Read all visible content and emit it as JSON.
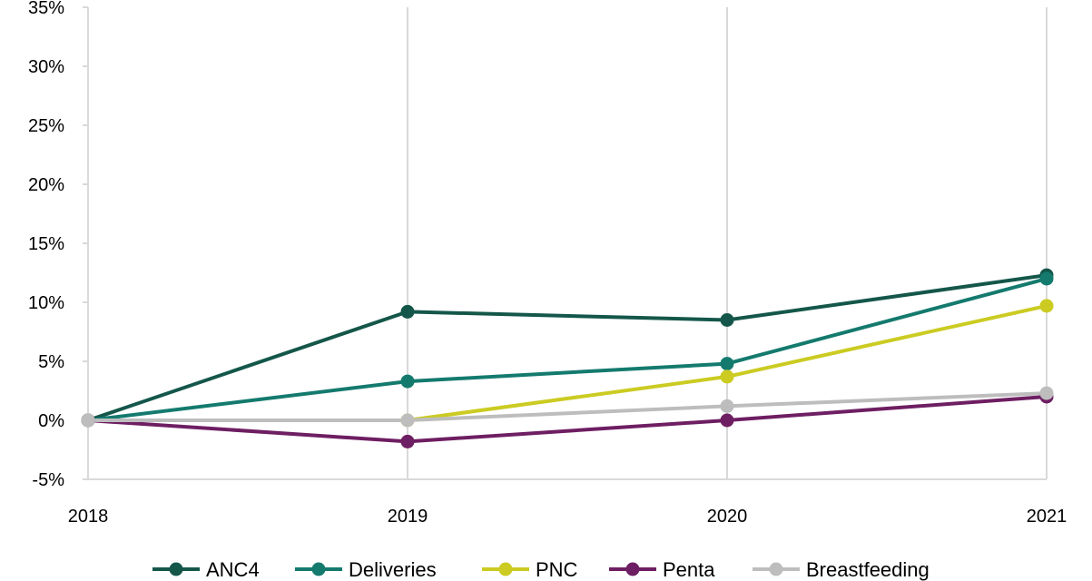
{
  "chart_data": {
    "type": "line",
    "title": "",
    "xlabel": "",
    "ylabel": "",
    "x": [
      "2018",
      "2019",
      "2020",
      "2021"
    ],
    "ylim": [
      -5,
      35
    ],
    "yticks": [
      -5,
      0,
      5,
      10,
      15,
      20,
      25,
      30,
      35
    ],
    "ytick_labels": [
      "-5%",
      "0%",
      "5%",
      "10%",
      "15%",
      "20%",
      "25%",
      "30%",
      "35%"
    ],
    "grid": "vertical",
    "legend_position": "bottom",
    "series": [
      {
        "name": "ANC4",
        "color": "#14574A",
        "values": [
          0,
          9.2,
          8.5,
          12.3
        ]
      },
      {
        "name": "Deliveries",
        "color": "#147A6E",
        "values": [
          0,
          3.3,
          4.8,
          12.0
        ]
      },
      {
        "name": "PNC",
        "color": "#CBCB22",
        "values": [
          0,
          0,
          3.7,
          9.7
        ]
      },
      {
        "name": "Penta",
        "color": "#6E1E62",
        "values": [
          0,
          -1.8,
          0,
          2.0
        ]
      },
      {
        "name": "Breastfeeding",
        "color": "#BDBDBD",
        "values": [
          0,
          0,
          1.2,
          2.3
        ]
      }
    ]
  }
}
